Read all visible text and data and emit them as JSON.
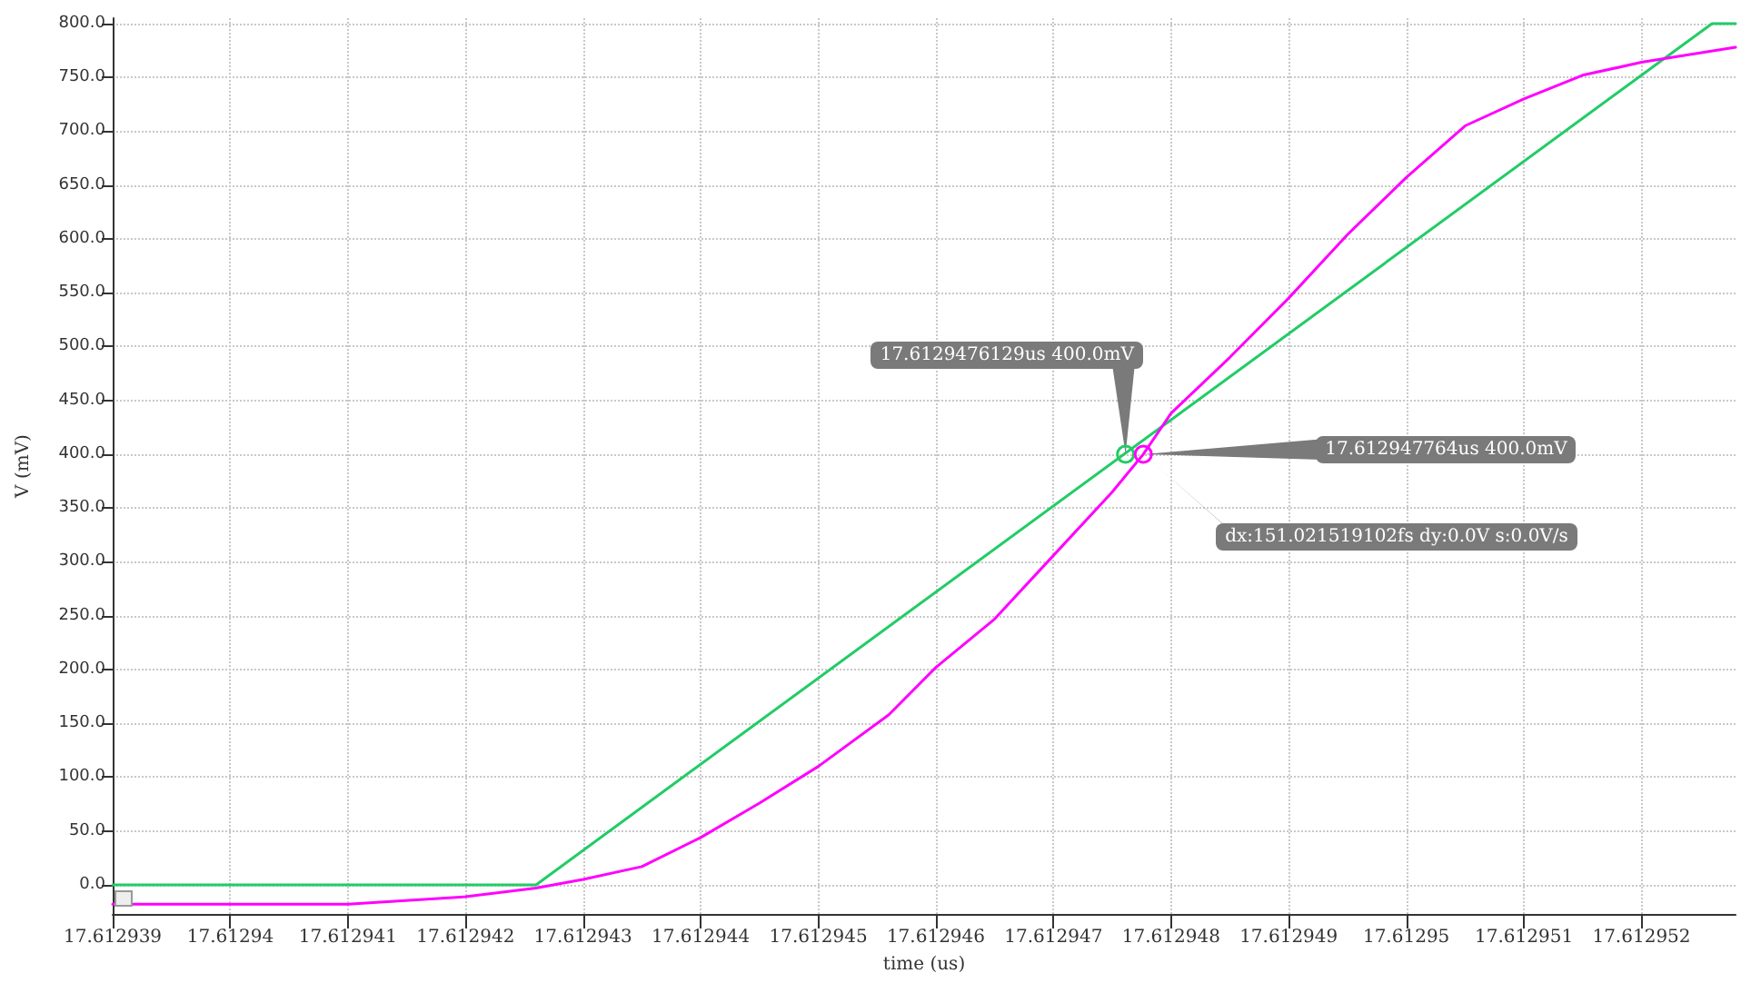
{
  "chart_data": {
    "type": "line",
    "xlabel": "time (us)",
    "ylabel": "V (mV)",
    "xlim": [
      17.612939,
      17.6129528
    ],
    "ylim": [
      -27,
      805
    ],
    "xticks": [
      17.612939,
      17.61294,
      17.612941,
      17.612942,
      17.612943,
      17.612944,
      17.612945,
      17.612946,
      17.612947,
      17.612948,
      17.612949,
      17.61295,
      17.612951,
      17.612952
    ],
    "yticks": [
      {
        "value": 0,
        "label": "0.0"
      },
      {
        "value": 50,
        "label": "50.0"
      },
      {
        "value": 100,
        "label": "100.0"
      },
      {
        "value": 150,
        "label": "150.0"
      },
      {
        "value": 200,
        "label": "200.0"
      },
      {
        "value": 250,
        "label": "250.0"
      },
      {
        "value": 300,
        "label": "300.0"
      },
      {
        "value": 350,
        "label": "350.0"
      },
      {
        "value": 400,
        "label": "400.0"
      },
      {
        "value": 450,
        "label": "450.0"
      },
      {
        "value": 500,
        "label": "500.0"
      },
      {
        "value": 550,
        "label": "550.0"
      },
      {
        "value": 600,
        "label": "600.0"
      },
      {
        "value": 650,
        "label": "650.0"
      },
      {
        "value": 700,
        "label": "700.0"
      },
      {
        "value": 750,
        "label": "750.0"
      },
      {
        "value": 800,
        "label": "800.0"
      }
    ],
    "grid": true,
    "marker": "none",
    "line_style": "solid",
    "series": [
      {
        "color": "#22cc66",
        "x": [
          17.612939,
          17.6129426,
          17.6129526,
          17.6129528
        ],
        "values": [
          0,
          0,
          800,
          800
        ]
      },
      {
        "color": "#ff00ff",
        "x": [
          17.612939,
          17.61294,
          17.612941,
          17.612942,
          17.6129426,
          17.612943,
          17.6129435,
          17.612944,
          17.6129445,
          17.612945,
          17.6129456,
          17.612946,
          17.6129465,
          17.612947,
          17.6129475,
          17.6129477641,
          17.612948,
          17.6129485,
          17.612949,
          17.6129495,
          17.61295,
          17.6129505,
          17.612951,
          17.6129515,
          17.612952,
          17.6129528
        ],
        "values": [
          -18,
          -18,
          -18,
          -11,
          -3,
          5,
          17,
          44,
          76,
          110,
          158,
          202,
          247,
          306,
          365,
          400,
          438,
          490,
          545,
          604,
          657,
          705,
          730,
          752,
          764,
          778
        ]
      }
    ],
    "annotations": [
      {
        "text": "17.6129476129us 400.0mV",
        "x": 17.6129476129,
        "y": 400
      },
      {
        "text": "17.612947764us 400.0mV",
        "x": 17.612947764,
        "y": 400
      },
      "dx:151.021519102fs dy:0.0V s:0.0V/s"
    ]
  }
}
